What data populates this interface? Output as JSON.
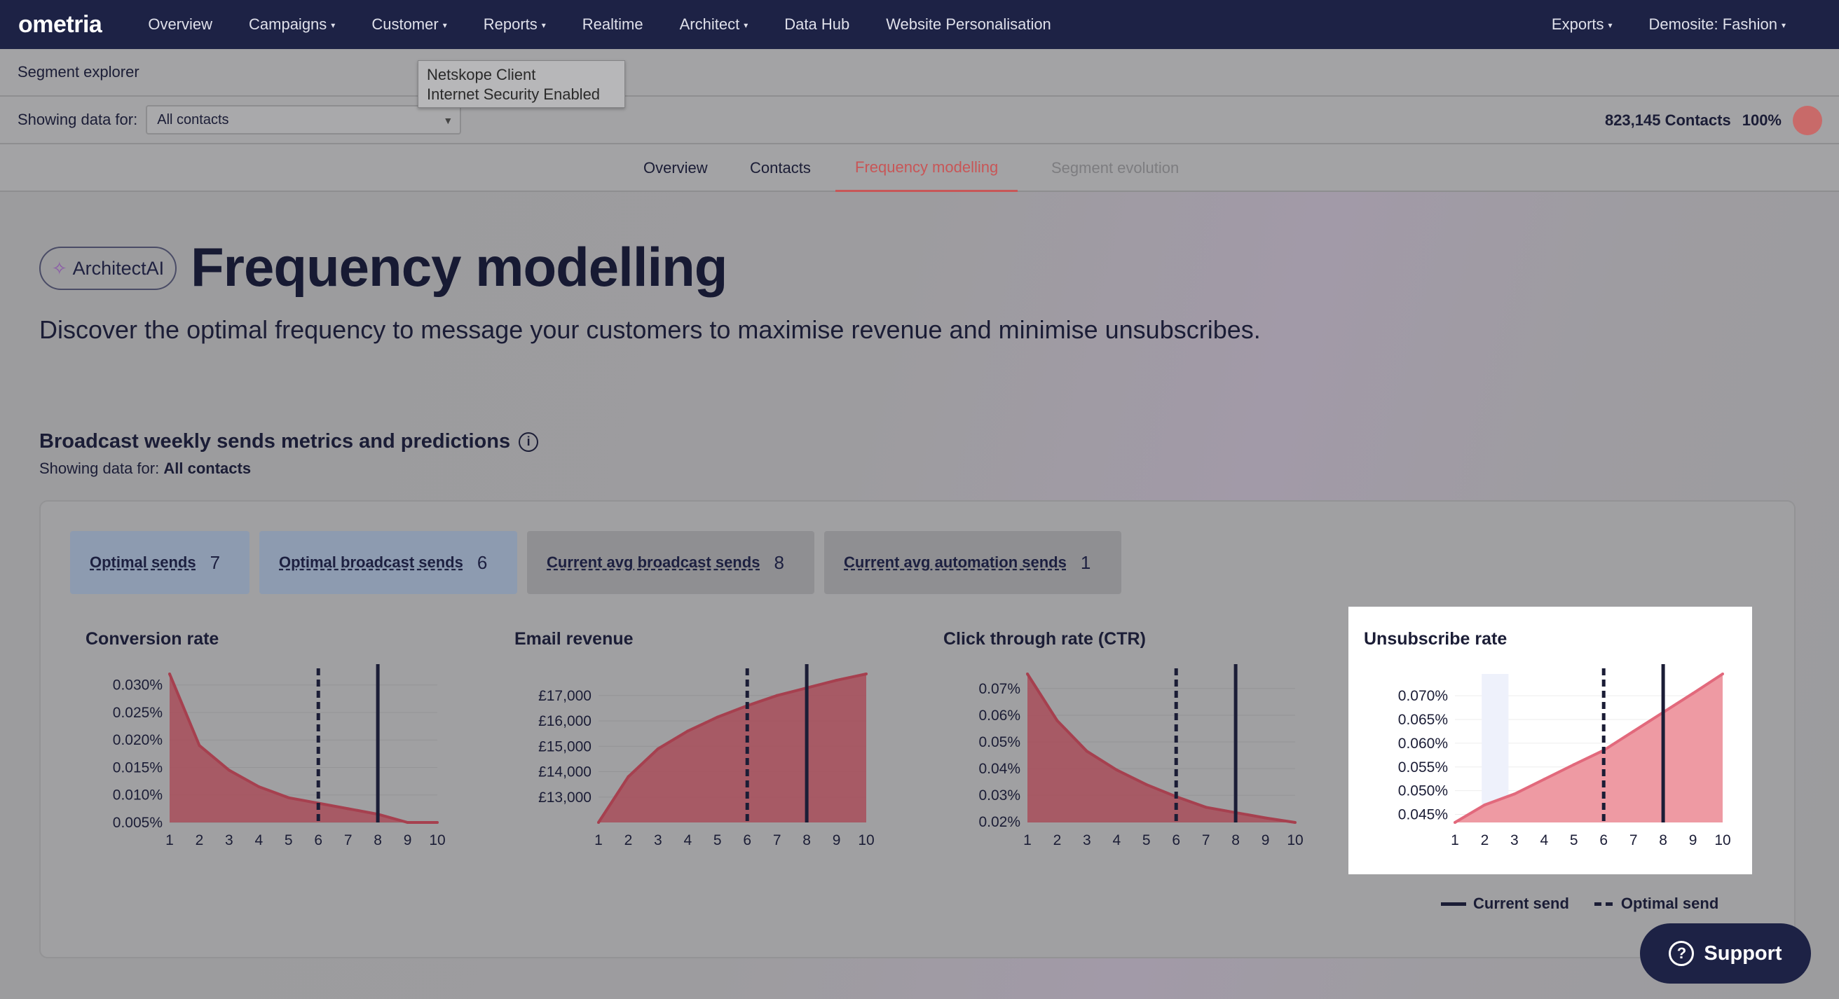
{
  "nav": {
    "logo": "ometria",
    "items": [
      {
        "label": "Overview",
        "caret": false
      },
      {
        "label": "Campaigns",
        "caret": true
      },
      {
        "label": "Customer",
        "caret": true
      },
      {
        "label": "Reports",
        "caret": true
      },
      {
        "label": "Realtime",
        "caret": false
      },
      {
        "label": "Architect",
        "caret": true
      },
      {
        "label": "Data Hub",
        "caret": false
      },
      {
        "label": "Website Personalisation",
        "caret": false
      }
    ],
    "right": [
      {
        "label": "Exports",
        "caret": true
      },
      {
        "label": "Demosite: Fashion",
        "caret": true
      }
    ]
  },
  "segment": {
    "title": "Segment explorer"
  },
  "tooltip": {
    "line1": "Netskope Client",
    "line2": "Internet Security Enabled"
  },
  "filter": {
    "label": "Showing data for:",
    "value": "All contacts",
    "contacts": "823,145 Contacts",
    "percent": "100%"
  },
  "tabs": [
    {
      "label": "Overview",
      "state": "normal"
    },
    {
      "label": "Contacts",
      "state": "normal"
    },
    {
      "label": "Frequency modelling",
      "state": "active"
    },
    {
      "label": "Segment evolution",
      "state": "disabled"
    }
  ],
  "header": {
    "badge": "ArchitectAI",
    "title": "Frequency modelling",
    "subtitle": "Discover the optimal frequency to message your customers to maximise revenue and minimise unsubscribes."
  },
  "section": {
    "title": "Broadcast weekly sends metrics and predictions",
    "sub_label": "Showing data for:",
    "sub_value": "All contacts"
  },
  "metrics": [
    {
      "label": "Optimal sends",
      "value": "7",
      "style": "blue"
    },
    {
      "label": "Optimal broadcast sends",
      "value": "6",
      "style": "blue"
    },
    {
      "label": "Current avg broadcast sends",
      "value": "8",
      "style": "gray"
    },
    {
      "label": "Current avg automation sends",
      "value": "1",
      "style": "gray"
    }
  ],
  "legend": {
    "current": "Current send",
    "optimal": "Optimal send"
  },
  "support": {
    "label": "Support"
  },
  "colors": {
    "nav_bg": "#1d2245",
    "accent": "#c85657",
    "area_fill": "#a84d5b",
    "area_fill_highlight": "#ee9aa3",
    "line": "#1b1d36"
  },
  "chart_data": [
    {
      "type": "area",
      "title": "Conversion rate",
      "x": [
        1,
        2,
        3,
        4,
        5,
        6,
        7,
        8,
        9,
        10
      ],
      "y": [
        0.032,
        0.019,
        0.0145,
        0.0115,
        0.0095,
        0.0085,
        0.0075,
        0.0065,
        0.005,
        0.005
      ],
      "yticks": [
        "0.005%",
        "0.010%",
        "0.015%",
        "0.020%",
        "0.025%",
        "0.030%"
      ],
      "ytick_values": [
        0.005,
        0.01,
        0.015,
        0.02,
        0.025,
        0.03
      ],
      "ylim": [
        0.005,
        0.032
      ],
      "current_send": 8,
      "optimal_send": 6,
      "highlight": false
    },
    {
      "type": "area",
      "title": "Email revenue",
      "x": [
        1,
        2,
        3,
        4,
        5,
        6,
        7,
        8,
        9,
        10
      ],
      "y": [
        12000,
        13800,
        14900,
        15600,
        16150,
        16600,
        17000,
        17300,
        17600,
        17850
      ],
      "yticks": [
        "£13,000",
        "£14,000",
        "£15,000",
        "£16,000",
        "£17,000"
      ],
      "ytick_values": [
        13000,
        14000,
        15000,
        16000,
        17000
      ],
      "ylim": [
        12000,
        17850
      ],
      "current_send": 8,
      "optimal_send": 6,
      "highlight": false
    },
    {
      "type": "area",
      "title": "Click through rate (CTR)",
      "x": [
        1,
        2,
        3,
        4,
        5,
        6,
        7,
        8,
        9,
        10
      ],
      "y": [
        0.0755,
        0.058,
        0.0465,
        0.0395,
        0.034,
        0.0295,
        0.0255,
        0.0235,
        0.0215,
        0.0198
      ],
      "yticks": [
        "0.02%",
        "0.03%",
        "0.04%",
        "0.05%",
        "0.06%",
        "0.07%"
      ],
      "ytick_values": [
        0.02,
        0.03,
        0.04,
        0.05,
        0.06,
        0.07
      ],
      "ylim": [
        0.0198,
        0.0755
      ],
      "current_send": 8,
      "optimal_send": 6,
      "highlight": false
    },
    {
      "type": "area",
      "title": "Unsubscribe rate",
      "x": [
        1,
        2,
        3,
        4,
        5,
        6,
        7,
        8,
        9,
        10
      ],
      "y": [
        0.0433,
        0.047,
        0.0493,
        0.0524,
        0.0555,
        0.0585,
        0.0625,
        0.0665,
        0.0705,
        0.0746
      ],
      "yticks": [
        "0.045%",
        "0.050%",
        "0.055%",
        "0.060%",
        "0.065%",
        "0.070%"
      ],
      "ytick_values": [
        0.045,
        0.05,
        0.055,
        0.06,
        0.065,
        0.07
      ],
      "ylim": [
        0.0433,
        0.0746
      ],
      "current_send": 8,
      "optimal_send": 6,
      "highlight": true
    }
  ]
}
